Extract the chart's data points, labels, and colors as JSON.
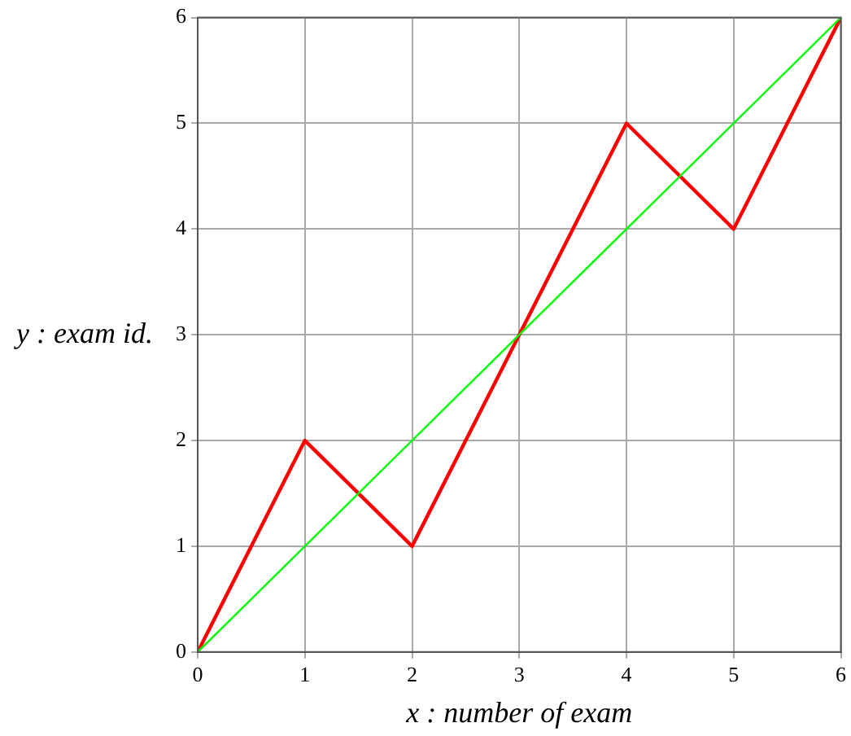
{
  "chart_data": {
    "type": "line",
    "xlabel": "x : number of exam",
    "ylabel": "y : exam id.",
    "x": [
      0,
      1,
      2,
      3,
      4,
      5,
      6
    ],
    "series": [
      {
        "color": "#ff0000",
        "values": [
          0,
          2,
          1,
          3,
          5,
          4,
          6
        ]
      },
      {
        "color": "#00ff00",
        "x": [
          0,
          6
        ],
        "values": [
          0,
          6
        ]
      }
    ],
    "xlim": [
      0,
      6
    ],
    "ylim": [
      0,
      6
    ],
    "xticks": [
      0,
      1,
      2,
      3,
      4,
      5,
      6
    ],
    "yticks": [
      0,
      1,
      2,
      3,
      4,
      5,
      6
    ],
    "grid": true,
    "legend": false,
    "marker": "none",
    "line_style": "solid"
  }
}
